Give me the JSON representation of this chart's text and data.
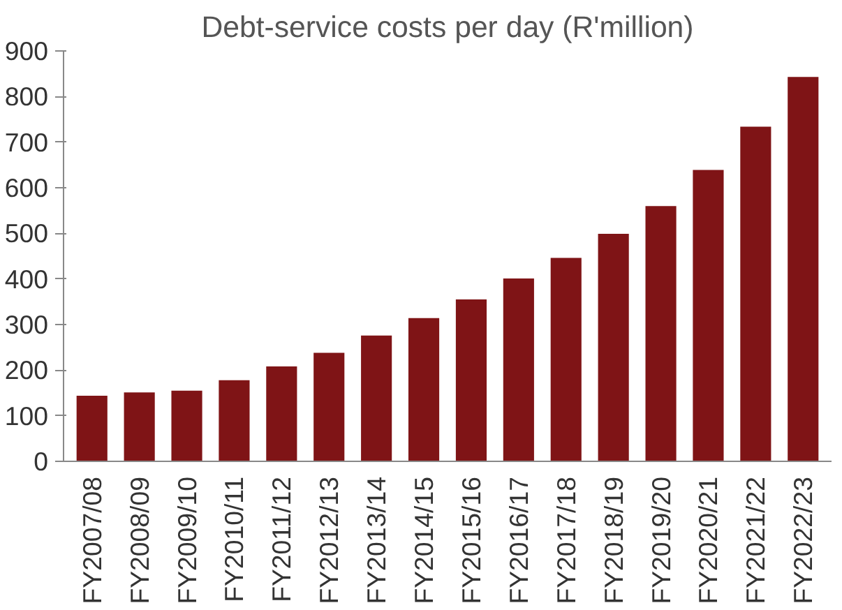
{
  "chart_data": {
    "type": "bar",
    "title": "Debt-service costs per day (R'million)",
    "categories": [
      "FY2007/08",
      "FY2008/09",
      "FY2009/10",
      "FY2010/11",
      "FY2011/12",
      "FY2012/13",
      "FY2013/14",
      "FY2014/15",
      "FY2015/16",
      "FY2016/17",
      "FY2017/18",
      "FY2018/19",
      "FY2019/20",
      "FY2020/21",
      "FY2021/22",
      "FY2022/23"
    ],
    "values": [
      144,
      151,
      155,
      178,
      208,
      238,
      276,
      314,
      355,
      401,
      446,
      499,
      560,
      639,
      734,
      843
    ],
    "color": "#7f1416",
    "ylim": [
      0,
      900
    ],
    "yticks": [
      0,
      100,
      200,
      300,
      400,
      500,
      600,
      700,
      800,
      900
    ],
    "grid": false
  }
}
